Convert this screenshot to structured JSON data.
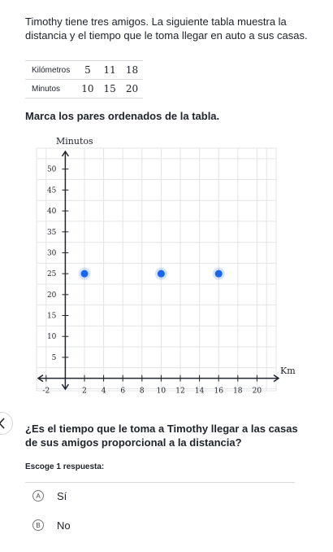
{
  "intro_text": "Timothy tiene tres amigos. La siguiente tabla muestra la distancia y el tiempo que le toma llegar en auto a sus casas.",
  "table": {
    "rows": [
      {
        "label": "Kilómetros",
        "values": [
          "5",
          "11",
          "18"
        ]
      },
      {
        "label": "Minutos",
        "values": [
          "10",
          "15",
          "20"
        ]
      }
    ]
  },
  "instruction": "Marca los pares ordenados de la tabla.",
  "chart_data": {
    "type": "scatter",
    "xlabel": "Km",
    "ylabel": "Minutos",
    "xlim": [
      -3,
      22
    ],
    "ylim": [
      -3,
      55
    ],
    "x_ticks": [
      -2,
      2,
      4,
      6,
      8,
      10,
      12,
      14,
      16,
      18,
      20
    ],
    "y_ticks": [
      5,
      10,
      15,
      20,
      25,
      30,
      35,
      40,
      45,
      50
    ],
    "points": [
      {
        "x": 2,
        "y": 25
      },
      {
        "x": 10,
        "y": 25
      },
      {
        "x": 16,
        "y": 25
      }
    ],
    "grid": true,
    "point_color": "#1865f2"
  },
  "question": "¿Es el tiempo que le toma a Timothy llegar a las casas de sus amigos proporcional a la distancia?",
  "choose_label": "Escoge 1 respuesta:",
  "choices": [
    {
      "letter": "A",
      "text": "Sí"
    },
    {
      "letter": "B",
      "text": "No"
    }
  ],
  "colors": {
    "text": "#21242c",
    "point": "#1865f2",
    "grid": "#e3e4e6",
    "axis": "#21242c"
  },
  "icons": {
    "back": "chevron-left-icon"
  }
}
